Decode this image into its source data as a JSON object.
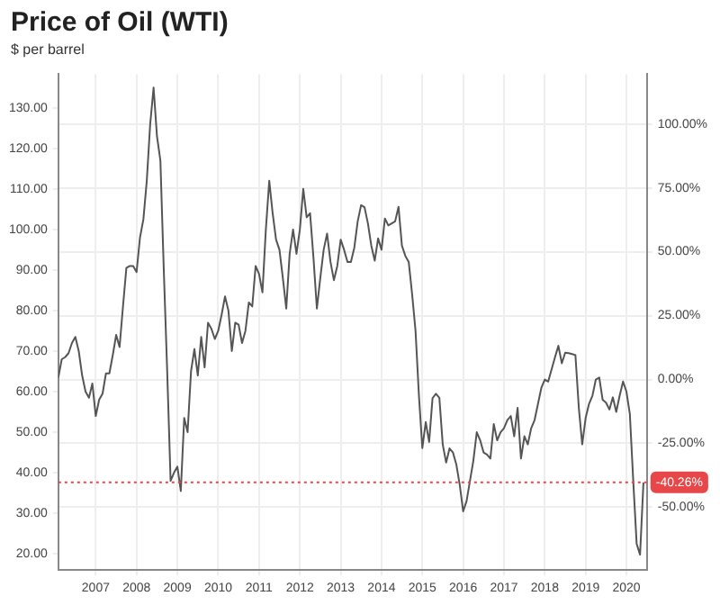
{
  "chart_data": {
    "type": "line",
    "title": "Price of Oil (WTI)",
    "subtitle": "$ per barrel",
    "x": [
      "2006-02",
      "2006-03",
      "2006-04",
      "2006-05",
      "2006-06",
      "2006-07",
      "2006-08",
      "2006-09",
      "2006-10",
      "2006-11",
      "2006-12",
      "2007-01",
      "2007-02",
      "2007-03",
      "2007-04",
      "2007-05",
      "2007-06",
      "2007-07",
      "2007-08",
      "2007-09",
      "2007-10",
      "2007-11",
      "2007-12",
      "2008-01",
      "2008-02",
      "2008-03",
      "2008-04",
      "2008-05",
      "2008-06",
      "2008-07",
      "2008-08",
      "2008-09",
      "2008-10",
      "2008-11",
      "2008-12",
      "2009-01",
      "2009-02",
      "2009-03",
      "2009-04",
      "2009-05",
      "2009-06",
      "2009-07",
      "2009-08",
      "2009-09",
      "2009-10",
      "2009-11",
      "2009-12",
      "2010-01",
      "2010-02",
      "2010-03",
      "2010-04",
      "2010-05",
      "2010-06",
      "2010-07",
      "2010-08",
      "2010-09",
      "2010-10",
      "2010-11",
      "2010-12",
      "2011-01",
      "2011-02",
      "2011-03",
      "2011-04",
      "2011-05",
      "2011-06",
      "2011-07",
      "2011-08",
      "2011-09",
      "2011-10",
      "2011-11",
      "2011-12",
      "2012-01",
      "2012-02",
      "2012-03",
      "2012-04",
      "2012-05",
      "2012-06",
      "2012-07",
      "2012-08",
      "2012-09",
      "2012-10",
      "2012-11",
      "2012-12",
      "2013-01",
      "2013-02",
      "2013-03",
      "2013-04",
      "2013-05",
      "2013-06",
      "2013-07",
      "2013-08",
      "2013-09",
      "2013-10",
      "2013-11",
      "2013-12",
      "2014-01",
      "2014-02",
      "2014-03",
      "2014-04",
      "2014-05",
      "2014-06",
      "2014-07",
      "2014-08",
      "2014-09",
      "2014-10",
      "2014-11",
      "2014-12",
      "2015-01",
      "2015-02",
      "2015-03",
      "2015-04",
      "2015-05",
      "2015-06",
      "2015-07",
      "2015-08",
      "2015-09",
      "2015-10",
      "2015-11",
      "2015-12",
      "2016-01",
      "2016-02",
      "2016-03",
      "2016-04",
      "2016-05",
      "2016-06",
      "2016-07",
      "2016-08",
      "2016-09",
      "2016-10",
      "2016-11",
      "2016-12",
      "2017-01",
      "2017-02",
      "2017-03",
      "2017-04",
      "2017-05",
      "2017-06",
      "2017-07",
      "2017-08",
      "2017-09",
      "2017-10",
      "2017-11",
      "2017-12",
      "2018-01",
      "2018-02",
      "2018-03",
      "2018-04",
      "2018-05",
      "2018-06",
      "2018-07",
      "2018-08",
      "2018-09",
      "2018-10",
      "2018-11",
      "2018-12",
      "2019-01",
      "2019-02",
      "2019-03",
      "2019-04",
      "2019-05",
      "2019-06",
      "2019-07",
      "2019-08",
      "2019-09",
      "2019-10",
      "2019-11",
      "2019-12",
      "2020-01",
      "2020-02",
      "2020-03",
      "2020-04",
      "2020-05",
      "2020-06"
    ],
    "series": [
      {
        "color": "#555555",
        "values": [
          63.5,
          68,
          68.5,
          69.5,
          72,
          73.5,
          70,
          64,
          60,
          58.5,
          62,
          54,
          58,
          59.5,
          64.5,
          64.5,
          69,
          74,
          71,
          81,
          90.5,
          91,
          91,
          89.5,
          98,
          102.5,
          112,
          126,
          135,
          123,
          117,
          90,
          65,
          38,
          40,
          41.5,
          35.5,
          53.5,
          50,
          65,
          70.5,
          64,
          73.5,
          66,
          77,
          75.5,
          73,
          75,
          79,
          83.5,
          80,
          70,
          77,
          76.5,
          72,
          75,
          82,
          81,
          91,
          89,
          84.5,
          100,
          112,
          104,
          97.5,
          95,
          88,
          80.5,
          94,
          100,
          94,
          100,
          110,
          103,
          104,
          93,
          80.5,
          88,
          95,
          99,
          92,
          87.5,
          91,
          97.5,
          95,
          92,
          92,
          95.5,
          102,
          106,
          105.5,
          101.5,
          96,
          92.3,
          97.8,
          95,
          102.7,
          101,
          101.5,
          102,
          105.6,
          96,
          93.5,
          92,
          84,
          75,
          59,
          46.1,
          52.5,
          47.6,
          58.4,
          59.5,
          58.5,
          47,
          42.5,
          46,
          45,
          42,
          37,
          30.5,
          33,
          38,
          43,
          50,
          48,
          45,
          44.5,
          43.5,
          52,
          48,
          50,
          51,
          53,
          54,
          49,
          56,
          43.5,
          49,
          47,
          51,
          53,
          57,
          61,
          63,
          62.5,
          65.5,
          68.5,
          71.3,
          67,
          69.6,
          69.5,
          69.3,
          69,
          56,
          47,
          53.5,
          57,
          59,
          63,
          63.5,
          58,
          57.3,
          55.6,
          58.6,
          55,
          59,
          62.5,
          60,
          54.5,
          38,
          22.5,
          19.8,
          37.6
        ]
      }
    ],
    "xlim": [
      "2006-02",
      "2020-07"
    ],
    "xticks": [
      "2007",
      "2008",
      "2009",
      "2010",
      "2011",
      "2012",
      "2013",
      "2014",
      "2015",
      "2016",
      "2017",
      "2018",
      "2019",
      "2020"
    ],
    "ylim": [
      16,
      138.3
    ],
    "yticks": [
      {
        "value": 20,
        "label": "20.00"
      },
      {
        "value": 30,
        "label": "30.00"
      },
      {
        "value": 40,
        "label": "40.00"
      },
      {
        "value": 50,
        "label": "50.00"
      },
      {
        "value": 60,
        "label": "60.00"
      },
      {
        "value": 70,
        "label": "70.00"
      },
      {
        "value": 80,
        "label": "80.00"
      },
      {
        "value": 90,
        "label": "90.00"
      },
      {
        "value": 100,
        "label": "100.00"
      },
      {
        "value": 110,
        "label": "110.00"
      },
      {
        "value": 120,
        "label": "120.00"
      },
      {
        "value": 130,
        "label": "130.00"
      }
    ],
    "y2lim": [
      -74.6,
      119.5
    ],
    "y2ticks": [
      {
        "value": -50,
        "label": "-50.00%"
      },
      {
        "value": -25,
        "label": "-25.00%"
      },
      {
        "value": 0,
        "label": "0.00%"
      },
      {
        "value": 25,
        "label": "25.00%"
      },
      {
        "value": 50,
        "label": "50.00%"
      },
      {
        "value": 75,
        "label": "75.00%"
      },
      {
        "value": 100,
        "label": "100.00%"
      }
    ],
    "ref_lines": [
      {
        "axis": "y2",
        "value": -40.26,
        "label": "-40.26%",
        "color": "#e8474a",
        "line_style": "dotted"
      }
    ],
    "grid": true,
    "marker": "none",
    "line_style": "solid"
  }
}
